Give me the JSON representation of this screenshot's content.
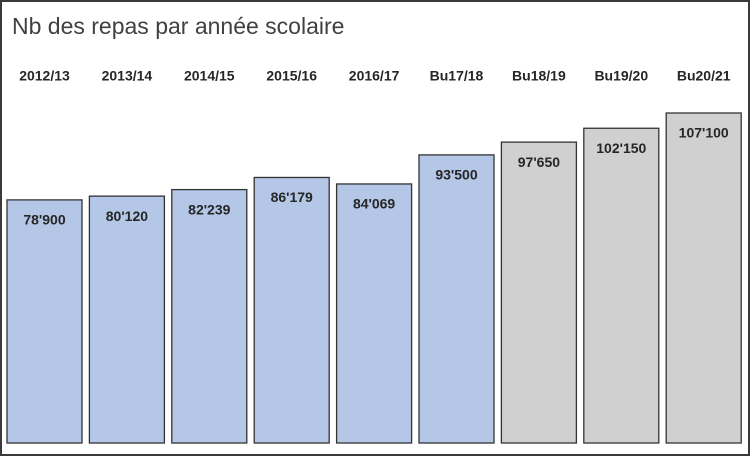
{
  "chart_data": {
    "type": "bar",
    "title": "Nb des repas par année scolaire",
    "categories": [
      "2012/13",
      "2013/14",
      "2014/15",
      "2015/16",
      "2016/17",
      "Bu17/18",
      "Bu18/19",
      "Bu19/20",
      "Bu20/21"
    ],
    "values": [
      78900,
      80120,
      82239,
      86179,
      84069,
      93500,
      97650,
      102150,
      107100
    ],
    "value_labels": [
      "78'900",
      "80'120",
      "82'239",
      "86'179",
      "84'069",
      "93'500",
      "97'650",
      "102'150",
      "107'100"
    ],
    "colors": [
      "#b4c7e7",
      "#b4c7e7",
      "#b4c7e7",
      "#b4c7e7",
      "#b4c7e7",
      "#b4c7e7",
      "#d0d0d0",
      "#d0d0d0",
      "#d0d0d0"
    ]
  }
}
